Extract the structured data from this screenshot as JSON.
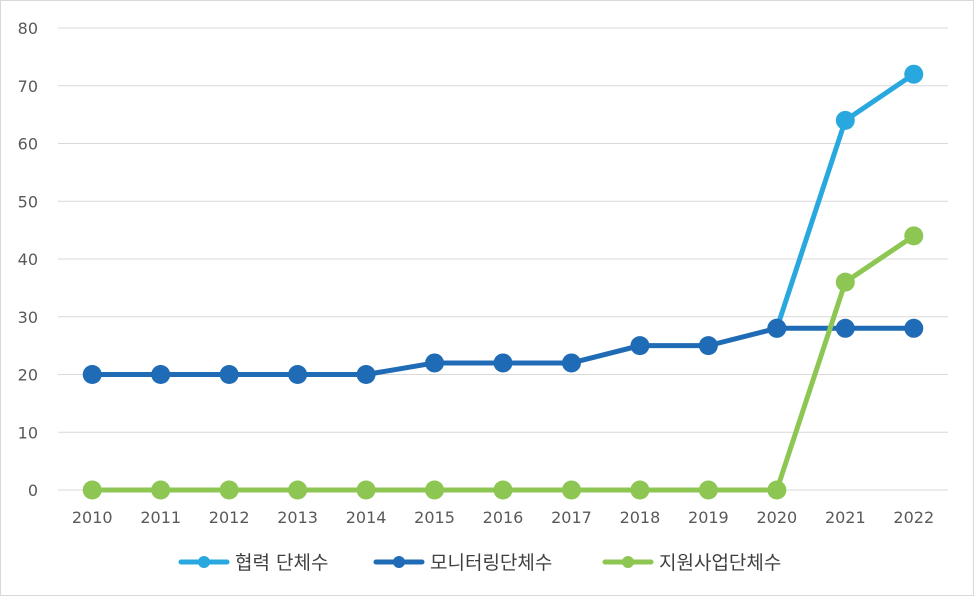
{
  "chart_data": {
    "type": "line",
    "title": "",
    "xlabel": "",
    "ylabel": "",
    "categories": [
      "2010",
      "2011",
      "2012",
      "2013",
      "2014",
      "2015",
      "2016",
      "2017",
      "2018",
      "2019",
      "2020",
      "2021",
      "2022"
    ],
    "ylim": [
      0,
      80
    ],
    "yticks": [
      0,
      10,
      20,
      30,
      40,
      50,
      60,
      70,
      80
    ],
    "grid": true,
    "legend_position": "bottom",
    "series": [
      {
        "name": "협력 단체수",
        "color": "#29a8e0",
        "values": [
          null,
          null,
          null,
          null,
          null,
          null,
          null,
          null,
          null,
          null,
          28,
          64,
          72
        ]
      },
      {
        "name": "모니터링단체수",
        "color": "#1f6bb5",
        "values": [
          20,
          20,
          20,
          20,
          20,
          22,
          22,
          22,
          25,
          25,
          28,
          28,
          28
        ]
      },
      {
        "name": "지원사업단체수",
        "color": "#8dc652",
        "values": [
          0,
          0,
          0,
          0,
          0,
          0,
          0,
          0,
          0,
          0,
          0,
          36,
          44
        ]
      }
    ]
  }
}
